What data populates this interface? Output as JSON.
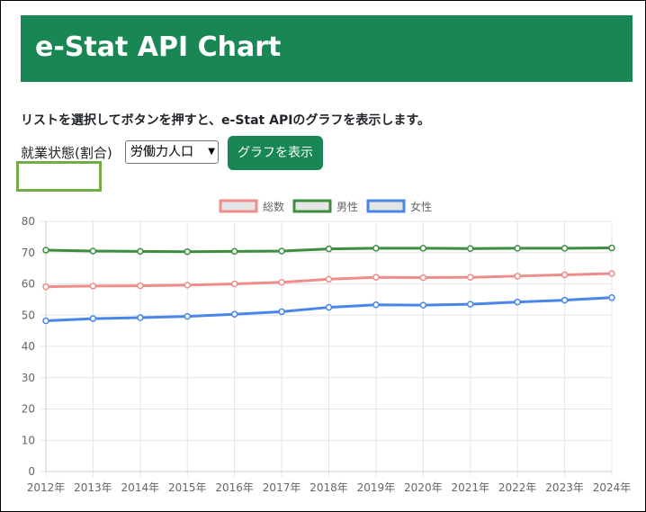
{
  "header": {
    "title": "e-Stat API Chart"
  },
  "description": "リストを選択してボタンを押すと、e-Stat APIのグラフを表示します。",
  "controls": {
    "label": "就業状態(割合)",
    "select_value": "労働力人口",
    "button_label": "グラフを表示"
  },
  "colors": {
    "header_bg": "#198754",
    "button_bg": "#198754",
    "status_box_border": "#70AD47"
  },
  "chart_data": {
    "type": "line",
    "categories": [
      "2012年",
      "2013年",
      "2014年",
      "2015年",
      "2016年",
      "2017年",
      "2018年",
      "2019年",
      "2020年",
      "2021年",
      "2022年",
      "2023年",
      "2024年"
    ],
    "series": [
      {
        "name": "総数",
        "color": "#F08C8C",
        "values": [
          59.1,
          59.3,
          59.4,
          59.6,
          60.0,
          60.5,
          61.5,
          62.1,
          62.0,
          62.1,
          62.5,
          62.9,
          63.3
        ]
      },
      {
        "name": "男性",
        "color": "#3E8E41",
        "values": [
          70.8,
          70.5,
          70.4,
          70.3,
          70.4,
          70.5,
          71.2,
          71.4,
          71.4,
          71.3,
          71.4,
          71.4,
          71.5
        ]
      },
      {
        "name": "女性",
        "color": "#4A86E8",
        "values": [
          48.2,
          48.9,
          49.2,
          49.6,
          50.3,
          51.1,
          52.5,
          53.3,
          53.2,
          53.5,
          54.2,
          54.8,
          55.6
        ]
      }
    ],
    "yticks": [
      "0",
      "10",
      "20",
      "30",
      "40",
      "50",
      "60",
      "70",
      "80"
    ],
    "ylim": [
      0,
      80
    ],
    "grid": true,
    "legend_position": "top"
  }
}
